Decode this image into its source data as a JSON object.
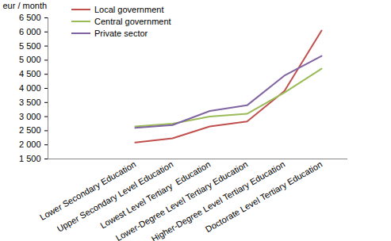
{
  "chart_data": {
    "type": "line",
    "ylabel": "eur / month",
    "categories": [
      "Lower Secondary Education",
      "Upper Secondary Level Education",
      "Lowest Level Tertiary  Education",
      "Lower-Degree Level Tertiary Education",
      "Higher-Degree Level Tertiary Education",
      "Doctorate Level Tertiary Education"
    ],
    "series": [
      {
        "name": "Local government",
        "color": "#c0504d",
        "values": [
          2080,
          2230,
          2650,
          2830,
          3900,
          6050
        ]
      },
      {
        "name": "Central government",
        "color": "#9bbb59",
        "values": [
          2650,
          2750,
          3000,
          3100,
          3850,
          4700
        ]
      },
      {
        "name": "Private sector",
        "color": "#8064a2",
        "values": [
          2600,
          2700,
          3200,
          3400,
          4450,
          5150
        ]
      }
    ],
    "ylim": [
      1500,
      6500
    ],
    "yticks": [
      {
        "value": 1500,
        "label": "1 500"
      },
      {
        "value": 2000,
        "label": "2 000"
      },
      {
        "value": 2500,
        "label": "2 500"
      },
      {
        "value": 3000,
        "label": "3 000"
      },
      {
        "value": 3500,
        "label": "3 500"
      },
      {
        "value": 4000,
        "label": "4 000"
      },
      {
        "value": 4500,
        "label": "4 500"
      },
      {
        "value": 5000,
        "label": "5 000"
      },
      {
        "value": 5500,
        "label": "5 500"
      },
      {
        "value": 6000,
        "label": "6 000"
      },
      {
        "value": 6500,
        "label": "6 500"
      }
    ],
    "grid": false,
    "legend": "top-left"
  }
}
